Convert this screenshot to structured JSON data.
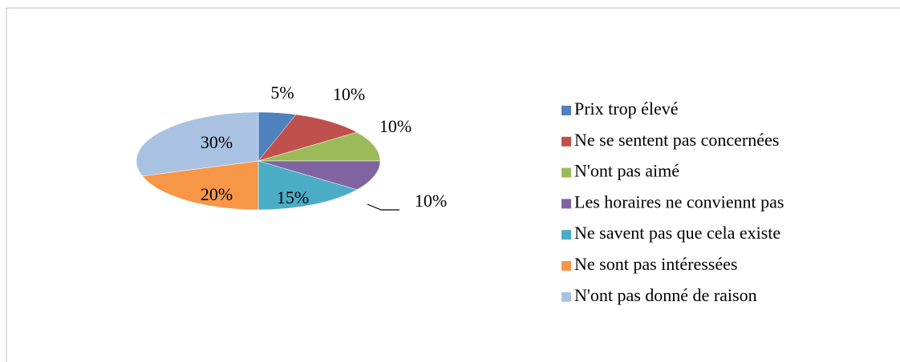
{
  "chart_data": {
    "type": "pie",
    "categories": [
      "Prix trop élevé",
      "Ne se sentent pas concernées",
      "N'ont pas aimé",
      "Les horaires ne conviennt pas",
      "Ne savent pas que cela existe",
      "Ne sont pas intéressées",
      "N'ont pas donné de raison"
    ],
    "values": [
      5,
      10,
      10,
      10,
      15,
      20,
      30
    ],
    "value_labels": [
      "5%",
      "10%",
      "10%",
      "10%",
      "15%",
      "20%",
      "30%"
    ],
    "colors": [
      "#4f81bd",
      "#c0504d",
      "#9bbb59",
      "#8064a2",
      "#4bacc6",
      "#f79646",
      "#a9c2e2"
    ],
    "legend": "right"
  }
}
